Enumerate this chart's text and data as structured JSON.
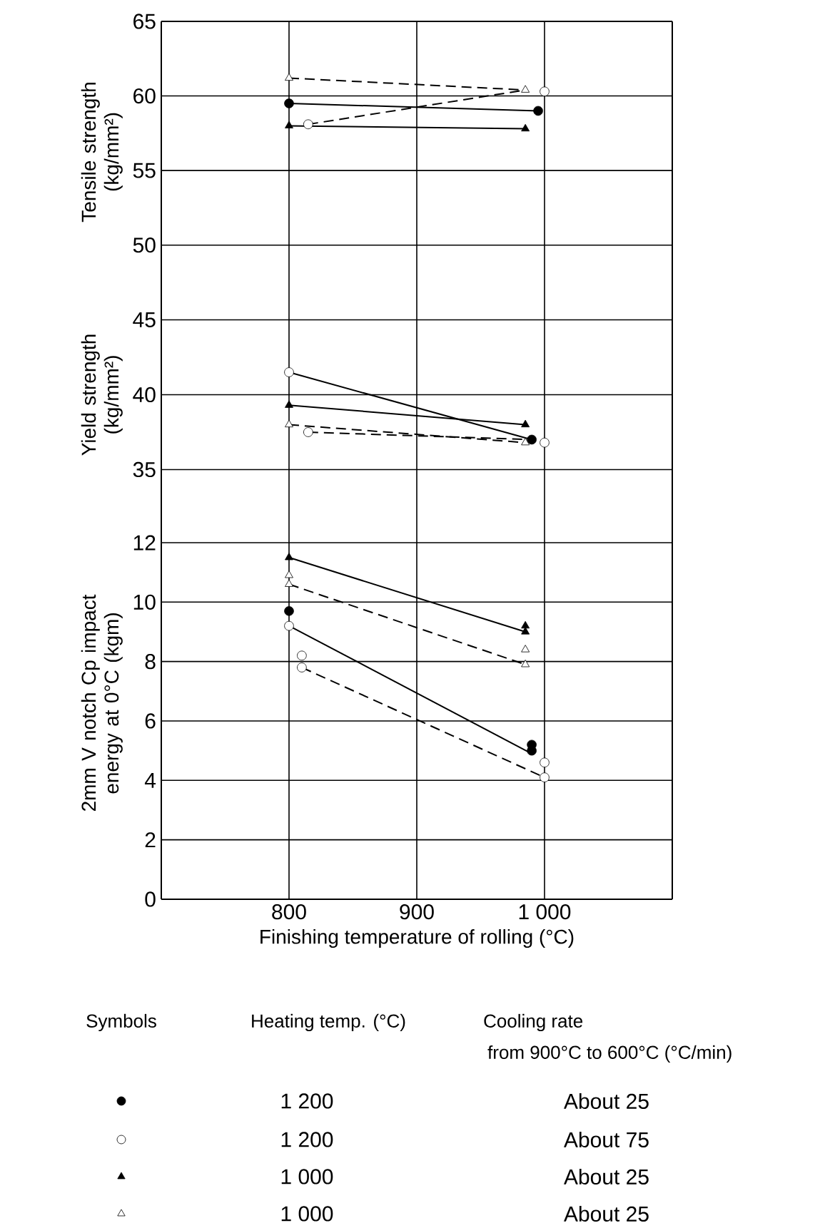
{
  "chart_data": [
    {
      "type": "scatter",
      "ylabel": "Tensile strength (kg/mm²)",
      "xlim": [
        700,
        1100
      ],
      "xticks": [
        800,
        900,
        1000
      ],
      "ylim": [
        47.5,
        65
      ],
      "yticks": [
        50,
        55,
        60,
        65
      ],
      "grid": true,
      "tick_labels": "y",
      "series": [
        {
          "color": "#000000",
          "marker": "circle",
          "x": [
            800,
            995
          ],
          "values": [
            59.5,
            59.0
          ]
        },
        {
          "color": "#ffffff",
          "marker": "circle",
          "x": [
            815,
            1000
          ],
          "values": [
            58.1,
            60.3
          ]
        },
        {
          "color": "#000000",
          "marker": "triangle",
          "x": [
            800,
            985
          ],
          "values": [
            58.0,
            57.8
          ]
        },
        {
          "color": "#ffffff",
          "marker": "triangle",
          "x": [
            800,
            985
          ],
          "values": [
            61.2,
            60.4
          ]
        },
        {
          "type": "line",
          "color": "#000000",
          "marker": "none",
          "line_style": "dashed",
          "x": [
            800,
            985
          ],
          "values": [
            61.2,
            60.4
          ]
        },
        {
          "type": "line",
          "color": "#000000",
          "marker": "none",
          "line_style": "solid",
          "x": [
            800,
            995
          ],
          "values": [
            59.5,
            59.0
          ]
        },
        {
          "type": "line",
          "color": "#000000",
          "marker": "none",
          "line_style": "dashed",
          "x": [
            815,
            985
          ],
          "values": [
            58.1,
            60.4
          ]
        },
        {
          "type": "line",
          "color": "#000000",
          "marker": "none",
          "line_style": "solid",
          "x": [
            800,
            985
          ],
          "values": [
            58.0,
            57.8
          ]
        }
      ]
    },
    {
      "type": "scatter",
      "ylabel": "Yield strength (kg/mm²)",
      "xlim": [
        700,
        1100
      ],
      "xticks": [
        800,
        900,
        1000
      ],
      "ylim": [
        32.5,
        47.5
      ],
      "yticks": [
        35,
        40,
        45
      ],
      "grid": true,
      "tick_labels": "y",
      "series": [
        {
          "color": "#000000",
          "marker": "circle",
          "x": [
            990
          ],
          "values": [
            37.0
          ]
        },
        {
          "color": "#ffffff",
          "marker": "circle",
          "x": [
            800,
            815,
            1000
          ],
          "values": [
            41.5,
            37.5,
            36.8
          ]
        },
        {
          "color": "#000000",
          "marker": "triangle",
          "x": [
            800,
            985
          ],
          "values": [
            39.3,
            38.0
          ]
        },
        {
          "color": "#ffffff",
          "marker": "triangle",
          "x": [
            800,
            985
          ],
          "values": [
            38.0,
            36.8
          ]
        },
        {
          "type": "line",
          "color": "#000000",
          "marker": "none",
          "line_style": "solid",
          "x": [
            800,
            990
          ],
          "values": [
            41.5,
            37.0
          ]
        },
        {
          "type": "line",
          "color": "#000000",
          "marker": "none",
          "line_style": "solid",
          "x": [
            800,
            985
          ],
          "values": [
            39.3,
            38.0
          ]
        },
        {
          "type": "line",
          "color": "#000000",
          "marker": "none",
          "line_style": "dashed",
          "x": [
            800,
            985
          ],
          "values": [
            38.0,
            36.8
          ]
        },
        {
          "type": "line",
          "color": "#000000",
          "marker": "none",
          "line_style": "dashed",
          "x": [
            815,
            990
          ],
          "values": [
            37.5,
            37.0
          ]
        }
      ]
    },
    {
      "type": "scatter",
      "ylabel": "2mm V notch Cp impact energy at 0°C (kgm)",
      "xlabel": "Finishing temperature of rolling (°C)",
      "xlim": [
        700,
        1100
      ],
      "xticks": [
        800,
        900,
        {
          "value": 1000,
          "label": "1 000"
        }
      ],
      "ylim": [
        0,
        13.2
      ],
      "yticks": [
        0,
        2,
        4,
        6,
        8,
        10,
        12
      ],
      "grid": true,
      "legend_title": "Symbols",
      "annotations": [
        "Heating temp. (°C)",
        "Cooling rate",
        "from 900°C to 600°C (°C/min)",
        "1 200",
        "About 25",
        "1 200",
        "About 75",
        "1 000",
        "About 25",
        "1 000",
        "About 25"
      ],
      "series": [
        {
          "color": "#000000",
          "marker": "circle",
          "x": [
            800,
            990,
            990
          ],
          "values": [
            9.7,
            5.2,
            5.0
          ]
        },
        {
          "color": "#ffffff",
          "marker": "circle",
          "x": [
            800,
            810,
            810,
            1000,
            1000
          ],
          "values": [
            9.2,
            8.2,
            7.8,
            4.6,
            4.1
          ]
        },
        {
          "color": "#000000",
          "marker": "triangle",
          "x": [
            800,
            985,
            985
          ],
          "values": [
            11.5,
            9.2,
            9.0
          ]
        },
        {
          "color": "#ffffff",
          "marker": "triangle",
          "x": [
            800,
            800,
            985,
            985
          ],
          "values": [
            10.9,
            10.6,
            8.4,
            7.9
          ]
        },
        {
          "type": "line",
          "color": "#000000",
          "marker": "none",
          "line_style": "solid",
          "x": [
            800,
            985
          ],
          "values": [
            11.5,
            9.0
          ]
        },
        {
          "type": "line",
          "color": "#000000",
          "marker": "none",
          "line_style": "dashed",
          "x": [
            800,
            985
          ],
          "values": [
            10.6,
            7.9
          ]
        },
        {
          "type": "line",
          "color": "#000000",
          "marker": "none",
          "line_style": "solid",
          "x": [
            800,
            990
          ],
          "values": [
            9.2,
            4.9
          ]
        },
        {
          "type": "line",
          "color": "#000000",
          "marker": "none",
          "line_style": "dashed",
          "x": [
            810,
            1000
          ],
          "values": [
            7.8,
            4.1
          ]
        }
      ]
    }
  ]
}
